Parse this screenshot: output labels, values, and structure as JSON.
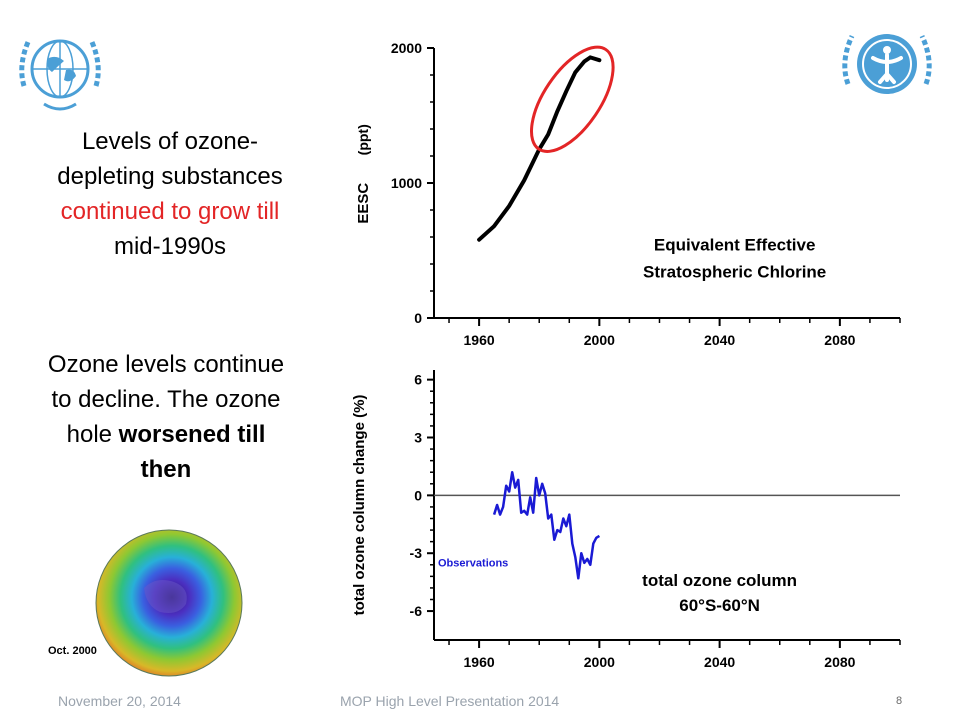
{
  "slide": {
    "para1": {
      "line1": "Levels of ozone-",
      "line2": "depleting substances",
      "line3": "continued to grow till",
      "line4": "mid-1990s"
    },
    "para2": {
      "line1": "Ozone levels continue",
      "line2": "to decline. The ozone",
      "line3_regular": "hole ",
      "line3_bold": "worsened till",
      "line4_bold": "then"
    },
    "globe_caption": "Oct. 2000",
    "footer": {
      "date": "November 20, 2014",
      "title": "MOP High Level Presentation 2014",
      "page": "8"
    },
    "colors": {
      "highlight_red": "#e32526",
      "observations_blue": "#1a1ad4",
      "logo_blue": "#4b9fd6"
    },
    "icons": [
      "wmo-logo-icon",
      "unep-logo-icon",
      "ozone-globe-icon"
    ]
  },
  "chart_data": [
    {
      "type": "line",
      "title": "Equivalent Effective Stratospheric Chlorine",
      "title_line1": "Equivalent Effective",
      "title_line2": "Stratospheric Chlorine",
      "ylabel": "EESC",
      "ylabel_unit": "(ppt)",
      "ylim": [
        0,
        2000
      ],
      "xlim": [
        1945,
        2100
      ],
      "yticks": [
        "0",
        "1000",
        "2000"
      ],
      "xticks": [
        "1960",
        "2000",
        "2040",
        "2080"
      ],
      "series": [
        {
          "x": [
            1960,
            1965,
            1970,
            1975,
            1980,
            1983,
            1986,
            1989,
            1992,
            1995,
            1997,
            2000
          ],
          "y": [
            580,
            680,
            830,
            1020,
            1250,
            1360,
            1530,
            1680,
            1820,
            1900,
            1930,
            1910
          ]
        }
      ],
      "annotation": "red ellipse highlighting 1983-2000 growth"
    },
    {
      "type": "line",
      "title": "total ozone column 60°S-60°N",
      "title_line1": "total ozone column",
      "title_line2": "60°S-60°N",
      "ylabel": "total ozone column change (%)",
      "ylim": [
        -7.5,
        6.5
      ],
      "xlim": [
        1945,
        2100
      ],
      "yticks": [
        "6",
        "3",
        "0",
        "-3",
        "-6"
      ],
      "xticks": [
        "1960",
        "2000",
        "2040",
        "2080"
      ],
      "series": [
        {
          "name": "Observations",
          "x": [
            1965,
            1966,
            1967,
            1968,
            1969,
            1970,
            1971,
            1972,
            1973,
            1974,
            1975,
            1976,
            1977,
            1978,
            1979,
            1980,
            1981,
            1982,
            1983,
            1984,
            1985,
            1986,
            1987,
            1988,
            1989,
            1990,
            1991,
            1992,
            1993,
            1994,
            1995,
            1996,
            1997,
            1998,
            1999,
            2000
          ],
          "y": [
            -1.0,
            -0.5,
            -1.0,
            -0.6,
            0.5,
            0.2,
            1.2,
            0.4,
            0.8,
            -0.9,
            -0.8,
            -1.0,
            -0.1,
            -0.9,
            0.9,
            0.0,
            0.6,
            0.1,
            -1.2,
            -1.0,
            -2.3,
            -1.8,
            -1.9,
            -1.2,
            -1.6,
            -1.0,
            -2.5,
            -3.2,
            -4.3,
            -3.0,
            -3.5,
            -3.3,
            -3.6,
            -2.5,
            -2.2,
            -2.1
          ]
        }
      ],
      "zero_line": true
    }
  ]
}
